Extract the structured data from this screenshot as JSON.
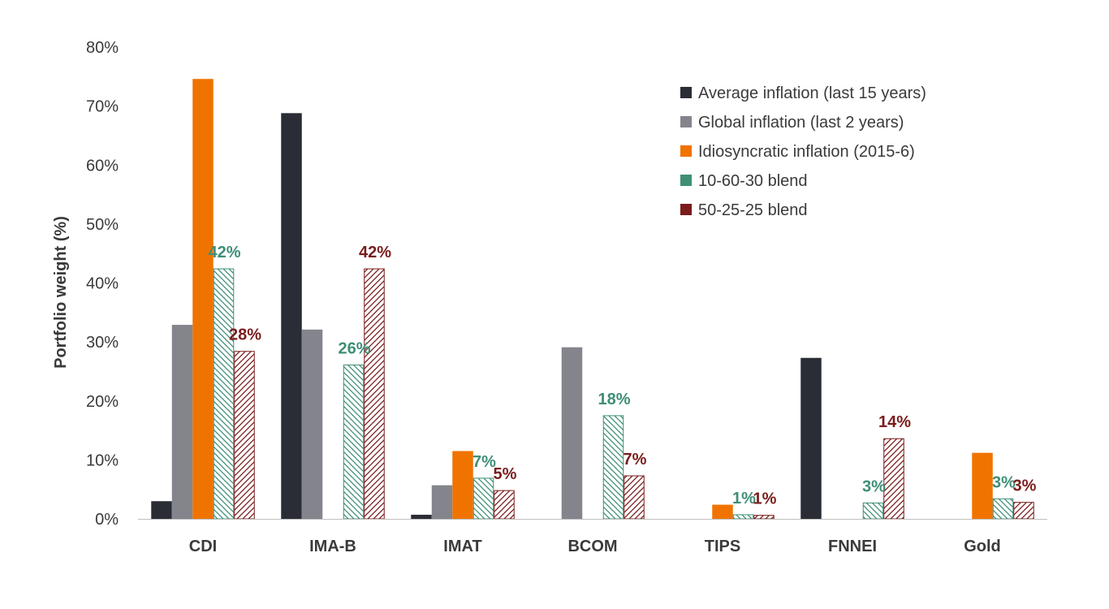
{
  "chart_data": {
    "type": "bar",
    "ylabel": "Portfolio weight (%)",
    "ylim": [
      0,
      80
    ],
    "yticks": [
      "0%",
      "10%",
      "20%",
      "30%",
      "40%",
      "50%",
      "60%",
      "70%",
      "80%"
    ],
    "grid": false,
    "legend_position": "top-right",
    "categories": [
      "CDI",
      "IMA-B",
      "IMAT",
      "BCOM",
      "TIPS",
      "FNNEI",
      "Gold"
    ],
    "series": [
      {
        "name": "Average inflation (last 15 years)",
        "color": "#2a2d35",
        "pattern": "solid",
        "values": [
          3.0,
          68.8,
          0.7,
          0,
          0,
          27.3,
          0
        ],
        "labels": [
          "",
          "",
          "",
          "",
          "",
          "",
          ""
        ]
      },
      {
        "name": "Global inflation (last 2 years)",
        "color": "#84858c",
        "pattern": "solid",
        "values": [
          32.9,
          32.1,
          5.7,
          29.1,
          0,
          0,
          0
        ],
        "labels": [
          "",
          "",
          "",
          "",
          "",
          "",
          ""
        ]
      },
      {
        "name": "Idiosyncratic inflation (2015-6)",
        "color": "#f07300",
        "pattern": "solid",
        "values": [
          74.6,
          0,
          11.5,
          0,
          2.4,
          0,
          11.2
        ],
        "labels": [
          "",
          "",
          "",
          "",
          "",
          "",
          ""
        ]
      },
      {
        "name": "10-60-30 blend",
        "color": "#3f8e76",
        "pattern": "hatch-back",
        "values": [
          42.4,
          26.1,
          6.9,
          17.5,
          0.7,
          2.7,
          3.4
        ],
        "labels": [
          "42%",
          "26%",
          "7%",
          "18%",
          "1%",
          "3%",
          "3%"
        ]
      },
      {
        "name": "50-25-25 blend",
        "color": "#7a1c1c",
        "pattern": "hatch-fwd",
        "values": [
          28.4,
          42.4,
          4.8,
          7.3,
          0.6,
          13.6,
          2.8
        ],
        "labels": [
          "28%",
          "42%",
          "5%",
          "7%",
          "1%",
          "14%",
          "3%"
        ]
      }
    ]
  }
}
